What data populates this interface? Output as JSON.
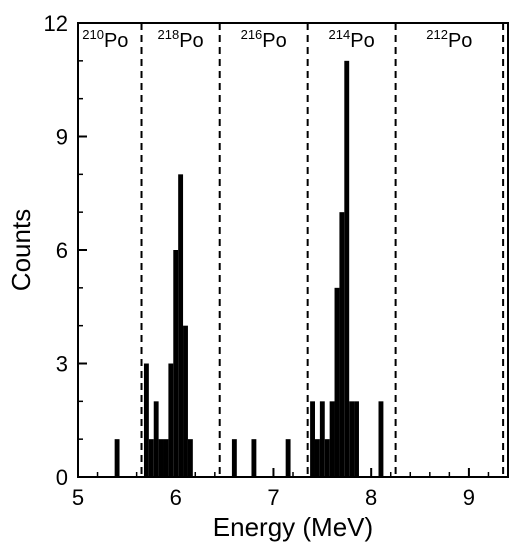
{
  "chart_data": {
    "type": "bar",
    "title": "",
    "xlabel": "Energy (MeV)",
    "ylabel": "Counts",
    "xlim": [
      5,
      9.4
    ],
    "ylim": [
      0,
      12
    ],
    "xticks": [
      5,
      6,
      7,
      8,
      9
    ],
    "yticks": [
      0,
      3,
      6,
      9,
      12
    ],
    "bin_width": 0.05,
    "bins": [
      {
        "x": 5.4,
        "count": 1
      },
      {
        "x": 5.7,
        "count": 3
      },
      {
        "x": 5.75,
        "count": 1
      },
      {
        "x": 5.8,
        "count": 2
      },
      {
        "x": 5.85,
        "count": 1
      },
      {
        "x": 5.9,
        "count": 1
      },
      {
        "x": 5.95,
        "count": 3
      },
      {
        "x": 6.0,
        "count": 6
      },
      {
        "x": 6.05,
        "count": 8
      },
      {
        "x": 6.1,
        "count": 4
      },
      {
        "x": 6.15,
        "count": 1
      },
      {
        "x": 6.6,
        "count": 1
      },
      {
        "x": 6.8,
        "count": 1
      },
      {
        "x": 7.15,
        "count": 1
      },
      {
        "x": 7.4,
        "count": 2
      },
      {
        "x": 7.45,
        "count": 1
      },
      {
        "x": 7.5,
        "count": 2
      },
      {
        "x": 7.55,
        "count": 1
      },
      {
        "x": 7.6,
        "count": 2
      },
      {
        "x": 7.65,
        "count": 5
      },
      {
        "x": 7.7,
        "count": 7
      },
      {
        "x": 7.75,
        "count": 11
      },
      {
        "x": 7.8,
        "count": 2
      },
      {
        "x": 7.85,
        "count": 2
      },
      {
        "x": 8.1,
        "count": 2
      }
    ],
    "dividers": [
      5.65,
      6.45,
      7.35,
      8.25,
      9.35
    ],
    "regions": [
      {
        "mass": "210",
        "element": "Po",
        "x": 5.28
      },
      {
        "mass": "218",
        "element": "Po",
        "x": 6.05
      },
      {
        "mass": "216",
        "element": "Po",
        "x": 6.9
      },
      {
        "mass": "214",
        "element": "Po",
        "x": 7.8
      },
      {
        "mass": "212",
        "element": "Po",
        "x": 8.8
      }
    ],
    "bar_color": "#000000",
    "grid": false,
    "legend": "none"
  }
}
